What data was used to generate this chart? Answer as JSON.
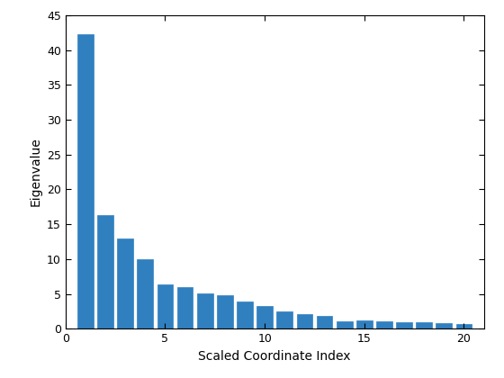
{
  "values": [
    42.2,
    16.3,
    13.0,
    10.0,
    6.4,
    6.0,
    5.1,
    4.8,
    3.9,
    3.3,
    2.5,
    2.1,
    1.8,
    1.1,
    1.2,
    1.1,
    0.9,
    0.9,
    0.8,
    0.75
  ],
  "xlabel": "Scaled Coordinate Index",
  "ylabel": "Eigenvalue",
  "ylim": [
    0,
    45
  ],
  "xlim": [
    0,
    21
  ],
  "bar_color": "#3080c0",
  "bar_edge_color": "#3080c0",
  "xticks": [
    0,
    5,
    10,
    15,
    20
  ],
  "yticks": [
    0,
    5,
    10,
    15,
    20,
    25,
    30,
    35,
    40,
    45
  ],
  "figsize": [
    5.6,
    4.2
  ],
  "dpi": 100
}
